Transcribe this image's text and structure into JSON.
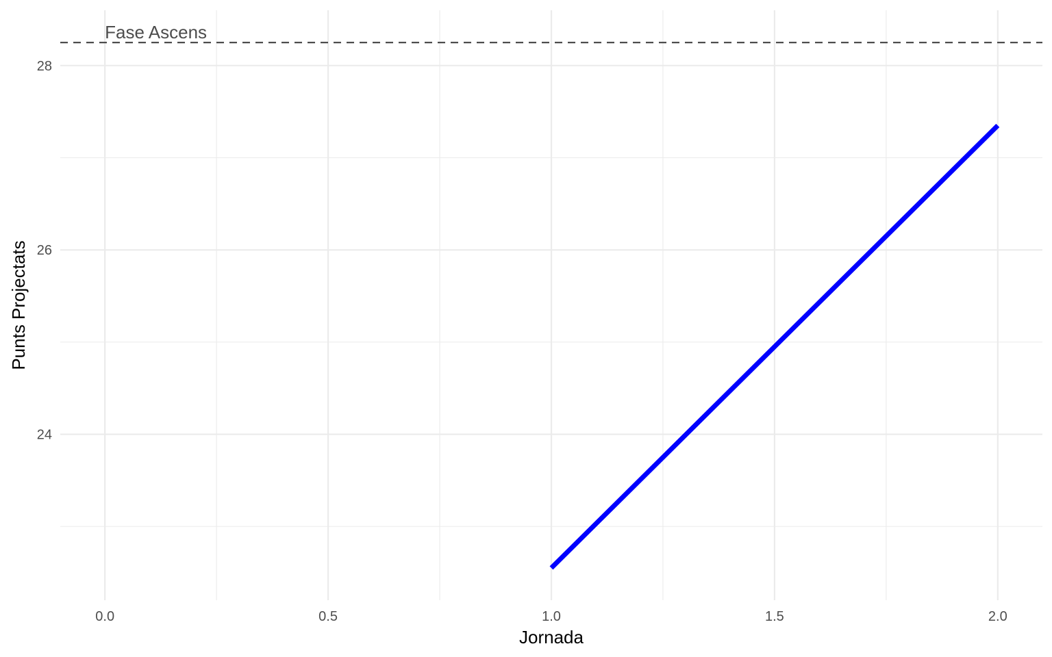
{
  "chart_data": {
    "type": "line",
    "title": "",
    "xlabel": "Jornada",
    "ylabel": "Punts Projectats",
    "xlim": [
      -0.1,
      2.1
    ],
    "ylim": [
      22.2,
      28.6
    ],
    "x_ticks": [
      0.0,
      0.5,
      1.0,
      1.5,
      2.0
    ],
    "x_tick_labels": [
      "0.0",
      "0.5",
      "1.0",
      "1.5",
      "2.0"
    ],
    "y_ticks": [
      24,
      26,
      28
    ],
    "y_tick_labels": [
      "24",
      "26",
      "28"
    ],
    "grid": true,
    "series": [
      {
        "x": [
          1,
          2
        ],
        "y": [
          22.55,
          27.35
        ],
        "color": "#0000ff"
      }
    ],
    "reference_line": {
      "orientation": "horizontal",
      "y": 28.25,
      "style": "dashed",
      "color": "#4d4d4d",
      "label": "Fase Ascens",
      "label_x": 0.0
    }
  }
}
